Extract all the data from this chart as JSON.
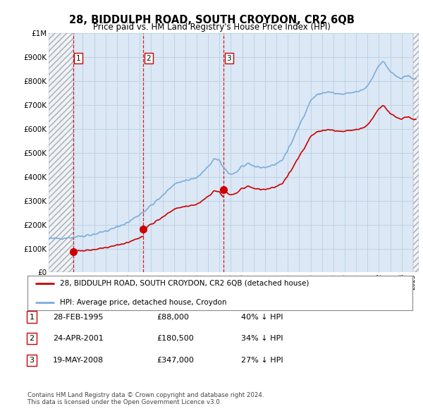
{
  "title": "28, BIDDULPH ROAD, SOUTH CROYDON, CR2 6QB",
  "subtitle": "Price paid vs. HM Land Registry's House Price Index (HPI)",
  "ylim": [
    0,
    1000000
  ],
  "yticks": [
    0,
    100000,
    200000,
    300000,
    400000,
    500000,
    600000,
    700000,
    800000,
    900000,
    1000000
  ],
  "ytick_labels": [
    "£0",
    "£100K",
    "£200K",
    "£300K",
    "£400K",
    "£500K",
    "£600K",
    "£700K",
    "£800K",
    "£900K",
    "£1M"
  ],
  "hpi_color": "#7aaddc",
  "price_color": "#cc0000",
  "bg_color": "#ffffff",
  "plot_bg_color": "#dce8f5",
  "grid_color": "#b8cfe0",
  "sales": [
    {
      "date_num": 1995.15,
      "price": 88000,
      "label": "1"
    },
    {
      "date_num": 2001.31,
      "price": 180500,
      "label": "2"
    },
    {
      "date_num": 2008.38,
      "price": 347000,
      "label": "3"
    }
  ],
  "legend_entries": [
    {
      "label": "28, BIDDULPH ROAD, SOUTH CROYDON, CR2 6QB (detached house)",
      "color": "#cc0000"
    },
    {
      "label": "HPI: Average price, detached house, Croydon",
      "color": "#7aaddc"
    }
  ],
  "table_rows": [
    {
      "num": "1",
      "date": "28-FEB-1995",
      "price": "£88,000",
      "hpi": "40% ↓ HPI"
    },
    {
      "num": "2",
      "date": "24-APR-2001",
      "price": "£180,500",
      "hpi": "34% ↓ HPI"
    },
    {
      "num": "3",
      "date": "19-MAY-2008",
      "price": "£347,000",
      "hpi": "27% ↓ HPI"
    }
  ],
  "footnote": "Contains HM Land Registry data © Crown copyright and database right 2024.\nThis data is licensed under the Open Government Licence v3.0.",
  "xmin": 1993.0,
  "xmax": 2025.5,
  "hatch_xend": 2025.0,
  "xticks": [
    1993,
    1994,
    1995,
    1996,
    1997,
    1998,
    1999,
    2000,
    2001,
    2002,
    2003,
    2004,
    2005,
    2006,
    2007,
    2008,
    2009,
    2010,
    2011,
    2012,
    2013,
    2014,
    2015,
    2016,
    2017,
    2018,
    2019,
    2020,
    2021,
    2022,
    2023,
    2024,
    2025
  ]
}
